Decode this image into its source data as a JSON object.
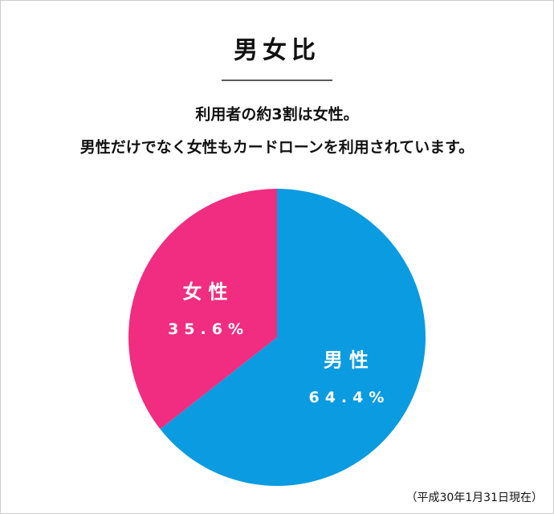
{
  "chart_data": {
    "type": "pie",
    "title": "男女比",
    "subtitle": [
      "利用者の約3割は女性。",
      "男性だけでなく女性もカードローンを利用されています。"
    ],
    "categories": [
      "男性",
      "女性"
    ],
    "values": [
      64.4,
      35.6
    ],
    "value_labels": [
      "64.4%",
      "35.6%"
    ],
    "colors": [
      "#0a9be0",
      "#f02d80"
    ],
    "note": "（平成30年1月31日現在）"
  }
}
